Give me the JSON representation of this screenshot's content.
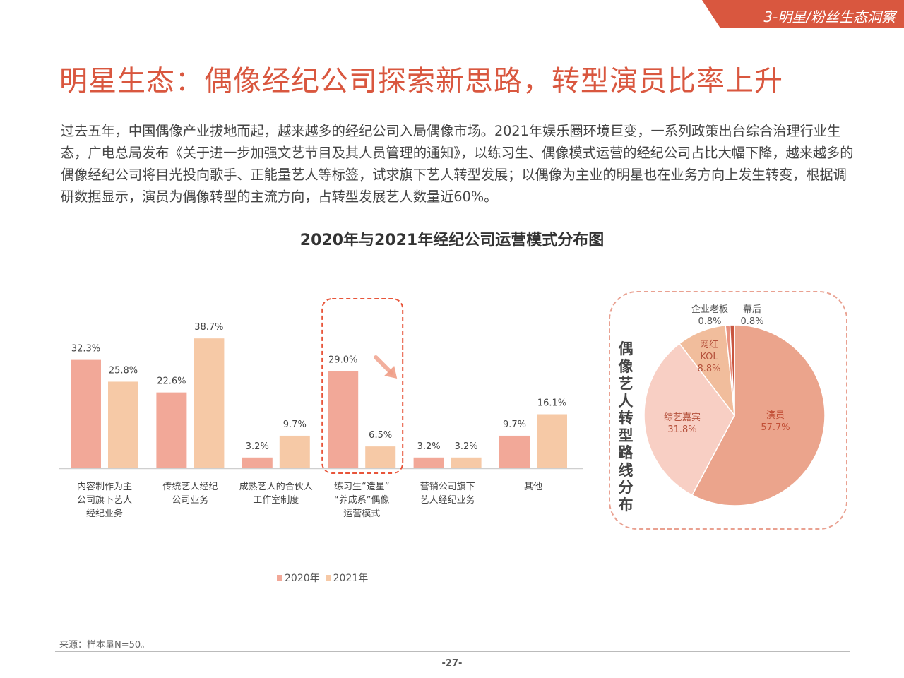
{
  "header": {
    "section_tab": "3-明星/粉丝生态洞察",
    "title": "明星生态：偶像经纪公司探索新思路，转型演员比率上升"
  },
  "intro_text": "过去五年，中国偶像产业拔地而起，越来越多的经纪公司入局偶像市场。2021年娱乐圈环境巨变，一系列政策出台综合治理行业生态，广电总局发布《关于进一步加强文艺节目及其人员管理的通知》，以练习生、偶像模式运营的经纪公司占比大幅下降，越来越多的偶像经纪公司将目光投向歌手、正能量艺人等标签，试求旗下艺人转型发展；以偶像为主业的明星也在业务方向上发生转变，根据调研数据显示，演员为偶像转型的主流方向，占转型发展艺人数量近60%。",
  "colors": {
    "accent": "#d9573f",
    "bar_2020": "#f2a898",
    "bar_2021": "#f6c9a6",
    "highlight_border": "#e8553a",
    "pie_border": "#e9a191"
  },
  "chart_data": [
    {
      "type": "bar",
      "title": "2020年与2021年经纪公司运营模式分布图",
      "categories": [
        [
          "内容制作为主",
          "公司旗下艺人",
          "经纪业务"
        ],
        [
          "传统艺人经纪",
          "公司业务"
        ],
        [
          "成熟艺人的合伙人",
          "工作室制度"
        ],
        [
          "练习生“造星”",
          "“养成系”偶像",
          "运营模式"
        ],
        [
          "营销公司旗下",
          "艺人经纪业务"
        ],
        [
          "其他"
        ]
      ],
      "series": [
        {
          "name": "2020年",
          "values": [
            32.3,
            22.6,
            3.2,
            29.0,
            3.2,
            9.7
          ],
          "labels": [
            "32.3%",
            "22.6%",
            "3.2%",
            "29.0%",
            "3.2%",
            "9.7%"
          ]
        },
        {
          "name": "2021年",
          "values": [
            25.8,
            38.7,
            9.7,
            6.5,
            3.2,
            16.1
          ],
          "labels": [
            "25.8%",
            "38.7%",
            "9.7%",
            "6.5%",
            "3.2%",
            "16.1%"
          ]
        }
      ],
      "unit": "%",
      "highlight_category_index": 3,
      "grid": false,
      "legend_position": "bottom-center"
    },
    {
      "type": "pie",
      "title": "偶像艺人转型路线分布",
      "slices": [
        {
          "lines": [
            "演员"
          ],
          "value": 57.7,
          "label": "57.7%"
        },
        {
          "lines": [
            "综艺嘉宾"
          ],
          "value": 31.8,
          "label": "31.8%"
        },
        {
          "lines": [
            "网红",
            "KOL"
          ],
          "value": 8.8,
          "label": "8.8%"
        },
        {
          "lines": [
            "企业老板"
          ],
          "value": 0.8,
          "label": "0.8%"
        },
        {
          "lines": [
            "幕后"
          ],
          "value": 0.8,
          "label": "0.8%"
        }
      ],
      "slice_colors": [
        "#eba48c",
        "#f8cfc4",
        "#f1bd9c",
        "#e8917f",
        "#c8553f"
      ]
    }
  ],
  "footer": {
    "source": "来源：样本量N=50。",
    "page_number": "-27-"
  }
}
